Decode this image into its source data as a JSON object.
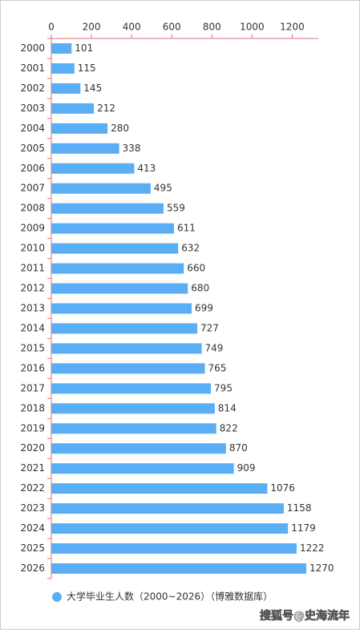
{
  "chart_data": {
    "type": "bar",
    "orientation": "horizontal",
    "categories": [
      "2000",
      "2001",
      "2002",
      "2003",
      "2004",
      "2005",
      "2006",
      "2007",
      "2008",
      "2009",
      "2010",
      "2011",
      "2012",
      "2013",
      "2014",
      "2015",
      "2016",
      "2017",
      "2018",
      "2019",
      "2020",
      "2021",
      "2022",
      "2023",
      "2024",
      "2025",
      "2026"
    ],
    "series": [
      {
        "name": "大学毕业生人数（2000~2026）（博雅数据库）",
        "color": "#5aaef5",
        "values": [
          101,
          115,
          145,
          212,
          280,
          338,
          413,
          495,
          559,
          611,
          632,
          660,
          680,
          699,
          727,
          749,
          765,
          795,
          814,
          822,
          870,
          909,
          1076,
          1158,
          1179,
          1222,
          1270
        ]
      }
    ],
    "xlim": [
      0,
      1330
    ],
    "xticks": [
      0,
      200,
      400,
      600,
      800,
      1000,
      1200
    ],
    "axis_color": "#e0707a",
    "legend": "bottom"
  },
  "watermark": "搜狐号@史海流年"
}
